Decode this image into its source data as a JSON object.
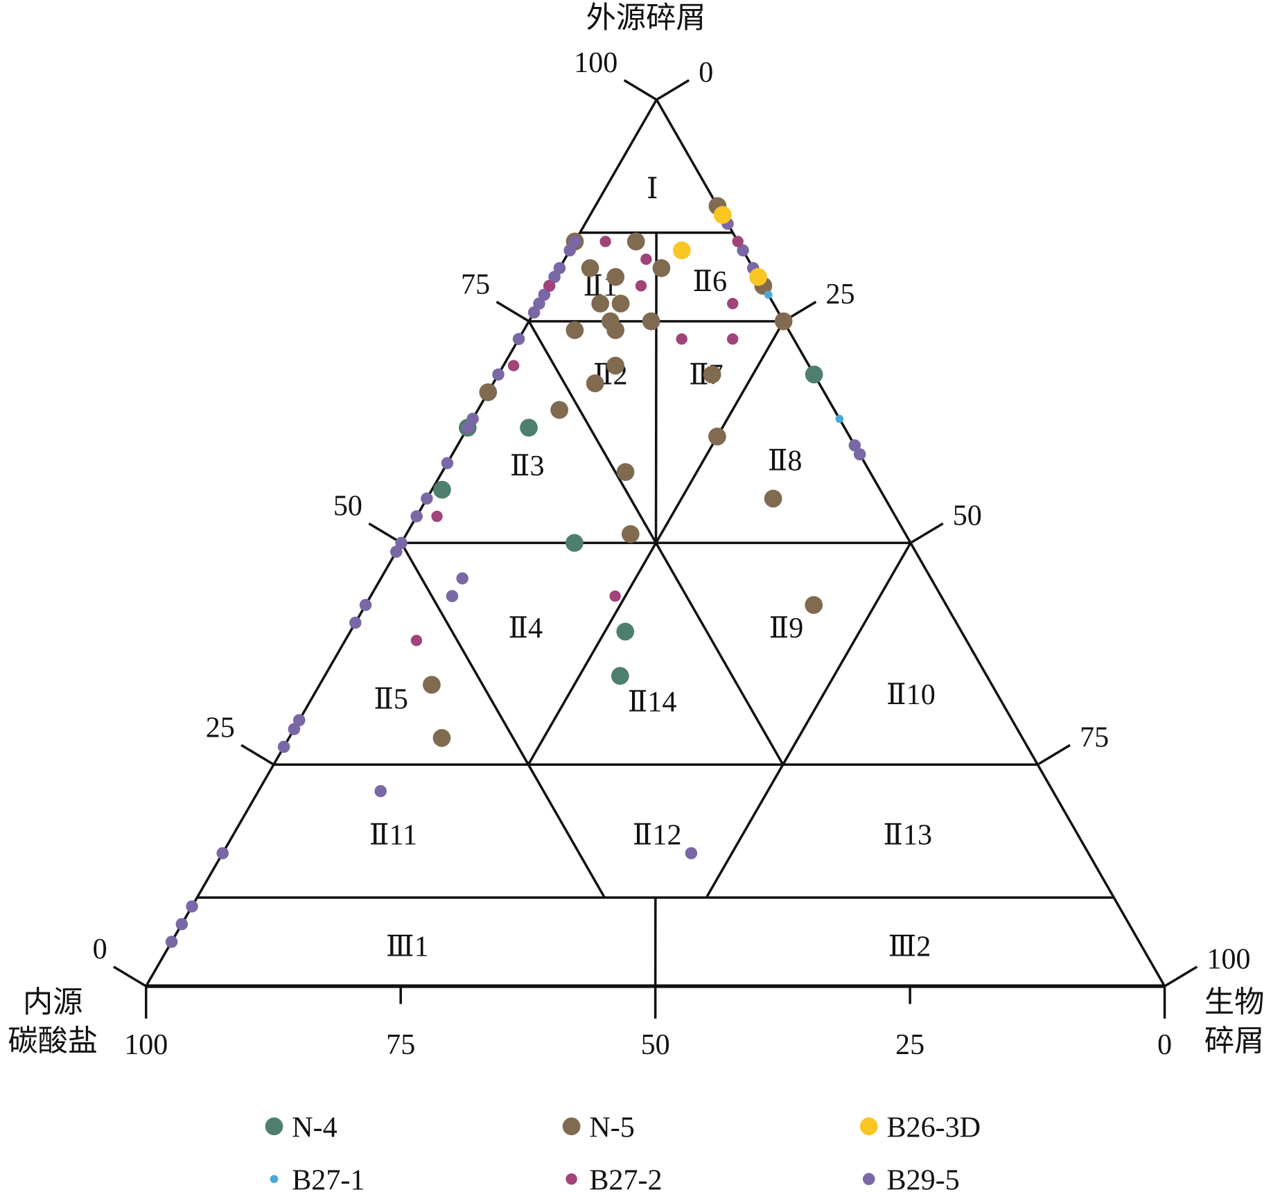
{
  "chart_data": {
    "type": "scatter",
    "subtype": "ternary",
    "axes": {
      "top": {
        "label": "外源碎屑",
        "ticks": [
          "0",
          "25",
          "50",
          "75",
          "100"
        ]
      },
      "left": {
        "label_lines": [
          "内源",
          "碳酸盐"
        ],
        "ticks": [
          "100",
          "75",
          "50",
          "25",
          "0"
        ]
      },
      "right": {
        "label_lines": [
          "生物",
          "碎屑"
        ],
        "ticks": [
          "0",
          "25",
          "50",
          "75",
          "100"
        ]
      }
    },
    "component_order": [
      "外源碎屑",
      "内源碳酸盐",
      "生物碎屑"
    ],
    "grid": false,
    "legend_position": "bottom",
    "region_labels": [
      "Ⅰ",
      "Ⅱ1",
      "Ⅱ6",
      "Ⅱ2",
      "Ⅱ7",
      "Ⅱ3",
      "Ⅱ8",
      "Ⅱ4",
      "Ⅱ9",
      "Ⅱ5",
      "Ⅱ14",
      "Ⅱ10",
      "Ⅱ11",
      "Ⅱ12",
      "Ⅱ13",
      "Ⅲ1",
      "Ⅲ2"
    ],
    "series": [
      {
        "name": "N-4",
        "color": "#4e7f6d",
        "points": [
          [
            69,
            0,
            31
          ],
          [
            63,
            31,
            6
          ],
          [
            63,
            37,
            0
          ],
          [
            56,
            43,
            1
          ],
          [
            50,
            33,
            17
          ],
          [
            40,
            33,
            27
          ],
          [
            35,
            36,
            29
          ]
        ]
      },
      {
        "name": "N-5",
        "color": "#806a50",
        "points": [
          [
            88,
            0,
            12
          ],
          [
            84,
            16,
            0
          ],
          [
            84,
            10,
            6
          ],
          [
            81,
            16,
            3
          ],
          [
            80,
            14,
            6
          ],
          [
            81,
            9,
            10
          ],
          [
            77,
            17,
            6
          ],
          [
            77,
            15,
            8
          ],
          [
            74,
            21,
            5
          ],
          [
            75,
            17,
            8
          ],
          [
            74,
            17,
            9
          ],
          [
            75,
            13,
            12
          ],
          [
            75,
            0,
            25
          ],
          [
            70,
            19,
            11
          ],
          [
            68,
            22,
            10
          ],
          [
            69,
            10,
            21
          ],
          [
            67,
            33,
            0
          ],
          [
            65,
            27,
            8
          ],
          [
            62,
            13,
            25
          ],
          [
            58,
            24,
            18
          ],
          [
            55,
            11,
            34
          ],
          [
            51,
            27,
            22
          ],
          [
            43,
            13,
            44
          ],
          [
            34,
            55,
            11
          ],
          [
            28,
            57,
            15
          ],
          [
            79,
            0,
            21
          ]
        ]
      },
      {
        "name": "B26-3D",
        "color": "#f9c623",
        "points": [
          [
            87,
            0,
            13
          ],
          [
            83,
            6,
            11
          ],
          [
            80,
            0,
            20
          ]
        ]
      },
      {
        "name": "B27-1",
        "color": "#4ba8d8",
        "points": [
          [
            64,
            0,
            36
          ],
          [
            78,
            0,
            22
          ]
        ]
      },
      {
        "name": "B27-2",
        "color": "#a0447a",
        "points": [
          [
            84,
            13,
            3
          ],
          [
            82,
            10,
            8
          ],
          [
            79,
            12,
            9
          ],
          [
            77,
            4,
            19
          ],
          [
            73,
            11,
            16
          ],
          [
            73,
            6,
            21
          ],
          [
            70,
            29,
            1
          ],
          [
            53,
            45,
            2
          ],
          [
            44,
            32,
            24
          ],
          [
            39,
            54,
            7
          ],
          [
            84,
            0,
            16
          ],
          [
            79,
            21,
            0
          ]
        ]
      },
      {
        "name": "B29-5",
        "color": "#7a68a6",
        "points": [
          [
            84,
            16,
            0
          ],
          [
            83,
            17,
            0
          ],
          [
            81,
            19,
            0
          ],
          [
            80,
            20,
            0
          ],
          [
            79,
            21,
            0
          ],
          [
            78,
            22,
            0
          ],
          [
            77,
            23,
            0
          ],
          [
            76,
            24,
            0
          ],
          [
            73,
            27,
            0
          ],
          [
            69,
            31,
            0
          ],
          [
            64,
            36,
            0
          ],
          [
            63,
            37,
            0
          ],
          [
            59,
            41,
            0
          ],
          [
            55,
            45,
            0
          ],
          [
            53,
            47,
            0
          ],
          [
            50,
            50,
            0
          ],
          [
            49,
            51,
            0
          ],
          [
            43,
            57,
            0
          ],
          [
            41,
            59,
            0
          ],
          [
            30,
            70,
            0
          ],
          [
            29,
            71,
            0
          ],
          [
            27,
            73,
            0
          ],
          [
            15,
            85,
            0
          ],
          [
            9,
            91,
            0
          ],
          [
            7,
            93,
            0
          ],
          [
            5,
            95,
            0
          ],
          [
            46,
            46,
            8
          ],
          [
            44,
            48,
            8
          ],
          [
            22,
            66,
            12
          ],
          [
            15,
            39,
            46
          ],
          [
            61,
            0,
            39
          ],
          [
            60,
            0,
            40
          ],
          [
            86,
            0,
            14
          ],
          [
            83,
            0,
            17
          ],
          [
            81,
            0,
            19
          ]
        ]
      }
    ]
  }
}
